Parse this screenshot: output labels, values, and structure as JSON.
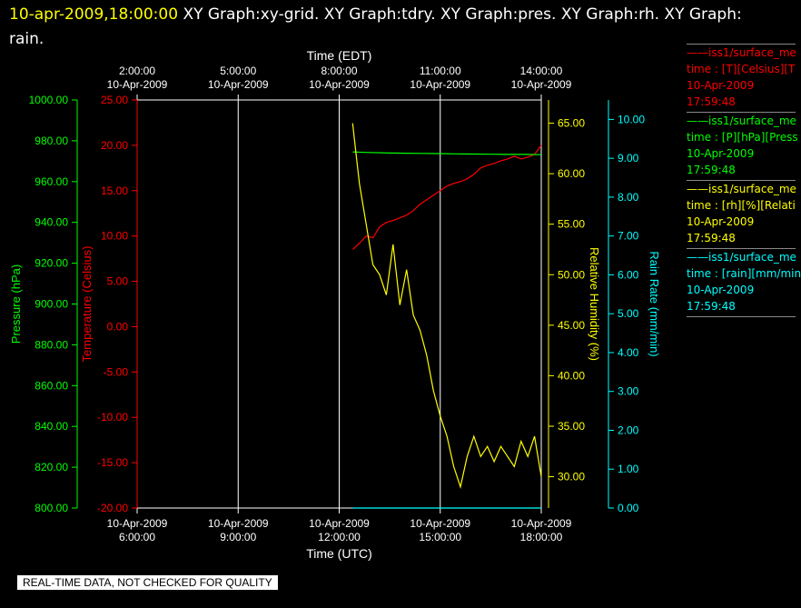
{
  "header": {
    "timestamp": "10-apr-2009,18:00:00",
    "graphs": "XY Graph:xy-grid.  XY Graph:tdry.  XY Graph:pres.  XY Graph:rh.  XY Graph: rain."
  },
  "footer": {
    "disclaimer": "REAL-TIME DATA, NOT CHECKED FOR QUALITY"
  },
  "legend": [
    {
      "title": "iss1/surface_me",
      "line1": "time : [T][Celsius][T",
      "line2": "10-Apr-2009",
      "line3": "17:59:48",
      "color": "#ff0000"
    },
    {
      "title": "iss1/surface_me",
      "line1": "time : [P][hPa][Press",
      "line2": "10-Apr-2009",
      "line3": "17:59:48",
      "color": "#00ff00"
    },
    {
      "title": "iss1/surface_me",
      "line1": "time : [rh][%][Relati",
      "line2": "10-Apr-2009",
      "line3": "17:59:48",
      "color": "#ffff00"
    },
    {
      "title": "iss1/surface_me",
      "line1": "time : [rain][mm/min",
      "line2": "10-Apr-2009",
      "line3": "17:59:48",
      "color": "#00ffff"
    }
  ],
  "chart_data": {
    "type": "line",
    "grid": true,
    "x_axis_top": {
      "label": "Time (EDT)",
      "ticks": [
        {
          "time": "2:00:00",
          "date": "10-Apr-2009"
        },
        {
          "time": "5:00:00",
          "date": "10-Apr-2009"
        },
        {
          "time": "8:00:00",
          "date": "10-Apr-2009"
        },
        {
          "time": "11:00:00",
          "date": "10-Apr-2009"
        },
        {
          "time": "14:00:00",
          "date": "10-Apr-2009"
        }
      ]
    },
    "x_axis_bottom": {
      "label": "Time (UTC)",
      "ticks": [
        {
          "time": "6:00:00",
          "date": "10-Apr-2009"
        },
        {
          "time": "9:00:00",
          "date": "10-Apr-2009"
        },
        {
          "time": "12:00:00",
          "date": "10-Apr-2009"
        },
        {
          "time": "15:00:00",
          "date": "10-Apr-2009"
        },
        {
          "time": "18:00:00",
          "date": "10-Apr-2009"
        }
      ],
      "range_hours_utc": [
        6,
        18
      ]
    },
    "axes": {
      "pressure": {
        "label": "Pressure (hPa)",
        "color": "#00ff00",
        "range": [
          800,
          1000
        ],
        "ticks": [
          "800.00",
          "820.00",
          "840.00",
          "860.00",
          "880.00",
          "900.00",
          "920.00",
          "940.00",
          "960.00",
          "980.00",
          "1000.00"
        ]
      },
      "temperature": {
        "label": "Temperature (Celsius)",
        "color": "#ff0000",
        "range": [
          -20,
          25
        ],
        "ticks": [
          "-20.00",
          "-15.00",
          "-10.00",
          "-5.00",
          "0.00",
          "5.00",
          "10.00",
          "15.00",
          "20.00",
          "25.00"
        ]
      },
      "humidity": {
        "label": "Relative Humidity (%)",
        "color": "#ffff00",
        "range": [
          26.9,
          67.3
        ],
        "ticks": [
          "30.00",
          "35.00",
          "40.00",
          "45.00",
          "50.00",
          "55.00",
          "60.00",
          "65.00"
        ]
      },
      "rain": {
        "label": "Rain Rate (mm/min)",
        "color": "#00ffff",
        "range": [
          0,
          10.5
        ],
        "ticks": [
          "0.00",
          "1.00",
          "2.00",
          "3.00",
          "4.00",
          "5.00",
          "6.00",
          "7.00",
          "8.00",
          "9.00",
          "10.00"
        ]
      }
    },
    "series": [
      {
        "name": "iss1/surface_met T",
        "axis": "temperature",
        "color": "#ff0000",
        "x": [
          12.4,
          12.6,
          12.8,
          13.0,
          13.2,
          13.4,
          13.6,
          13.8,
          14.0,
          14.2,
          14.4,
          14.6,
          14.8,
          15.0,
          15.2,
          15.4,
          15.6,
          15.8,
          16.0,
          16.2,
          16.4,
          16.6,
          16.8,
          17.0,
          17.2,
          17.4,
          17.6,
          17.8,
          18.0
        ],
        "y": [
          8.5,
          9.2,
          10.0,
          9.8,
          11.0,
          11.5,
          11.7,
          12.0,
          12.3,
          12.8,
          13.5,
          14.0,
          14.5,
          15.0,
          15.5,
          15.8,
          16.0,
          16.3,
          16.8,
          17.5,
          17.8,
          18.0,
          18.3,
          18.5,
          18.8,
          18.5,
          18.7,
          19.0,
          20.0
        ]
      },
      {
        "name": "iss1/surface_met P",
        "axis": "pressure",
        "color": "#00ff00",
        "x": [
          12.4,
          12.8,
          13.5,
          14.0,
          14.5,
          15.0,
          15.5,
          16.0,
          16.5,
          17.0,
          17.5,
          18.0
        ],
        "y": [
          974.5,
          974.3,
          974.0,
          973.9,
          973.8,
          973.7,
          973.6,
          973.5,
          973.4,
          973.3,
          973.3,
          973.2
        ]
      },
      {
        "name": "iss1/surface_met rh",
        "axis": "humidity",
        "color": "#ffff00",
        "x": [
          12.4,
          12.5,
          12.6,
          12.8,
          13.0,
          13.2,
          13.4,
          13.6,
          13.8,
          14.0,
          14.2,
          14.4,
          14.6,
          14.8,
          15.0,
          15.2,
          15.4,
          15.6,
          15.8,
          16.0,
          16.2,
          16.4,
          16.6,
          16.8,
          17.0,
          17.2,
          17.4,
          17.6,
          17.8,
          18.0
        ],
        "y": [
          65.0,
          62.0,
          59.0,
          55.0,
          51.0,
          50.0,
          48.0,
          53.0,
          47.0,
          50.5,
          46.0,
          44.5,
          42.0,
          38.5,
          36.0,
          34.0,
          31.0,
          29.0,
          32.0,
          34.0,
          32.0,
          33.0,
          31.5,
          33.0,
          32.0,
          31.0,
          33.5,
          32.0,
          34.0,
          30.0
        ]
      },
      {
        "name": "iss1/surface_met rain",
        "axis": "rain",
        "color": "#00ffff",
        "x": [
          12.4,
          18.0
        ],
        "y": [
          0.0,
          0.0
        ]
      }
    ]
  }
}
